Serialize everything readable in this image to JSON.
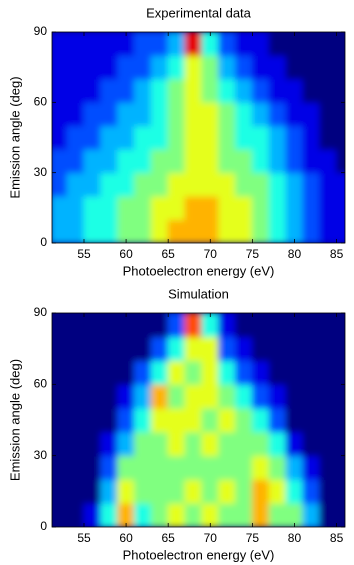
{
  "chart_data": [
    {
      "type": "heatmap",
      "title": "Experimental data",
      "xlabel": "Photoelectron energy (eV)",
      "ylabel": "Emission angle (deg)",
      "colormap": "jet",
      "zlim": [
        0,
        10
      ],
      "x": [
        52,
        54,
        56,
        58,
        60,
        62,
        64,
        66,
        68,
        70,
        72,
        74,
        76,
        78,
        80,
        82,
        84,
        86
      ],
      "y": [
        5,
        15,
        25,
        35,
        45,
        55,
        65,
        75,
        85
      ],
      "z": [
        [
          3,
          3,
          4,
          4,
          5,
          5,
          6,
          7,
          7,
          7,
          6,
          6,
          5,
          4,
          3,
          2,
          1,
          1
        ],
        [
          3,
          3,
          4,
          4,
          5,
          5,
          6,
          6,
          7,
          7,
          6,
          6,
          5,
          4,
          3,
          2,
          1,
          1
        ],
        [
          2,
          3,
          3,
          4,
          4,
          5,
          5,
          6,
          6,
          6,
          6,
          5,
          5,
          4,
          3,
          2,
          1,
          1
        ],
        [
          2,
          2,
          3,
          3,
          4,
          4,
          5,
          5,
          6,
          6,
          5,
          5,
          4,
          3,
          2,
          1,
          1,
          0
        ],
        [
          1,
          2,
          2,
          3,
          3,
          4,
          4,
          5,
          6,
          6,
          5,
          4,
          4,
          3,
          2,
          1,
          0,
          0
        ],
        [
          1,
          1,
          2,
          2,
          3,
          3,
          4,
          5,
          6,
          6,
          5,
          4,
          3,
          2,
          1,
          1,
          0,
          0
        ],
        [
          1,
          1,
          1,
          2,
          2,
          3,
          4,
          5,
          6,
          5,
          4,
          3,
          2,
          1,
          1,
          0,
          0,
          0
        ],
        [
          1,
          1,
          1,
          1,
          2,
          2,
          3,
          4,
          6,
          5,
          3,
          2,
          1,
          1,
          0,
          0,
          0,
          0
        ],
        [
          1,
          1,
          1,
          1,
          1,
          2,
          2,
          3,
          9,
          4,
          2,
          1,
          1,
          0,
          0,
          0,
          0,
          0
        ]
      ],
      "xlim": [
        51.2,
        86
      ],
      "ylim": [
        0,
        90
      ],
      "xticks": [
        55,
        60,
        65,
        70,
        75,
        80,
        85
      ],
      "yticks": [
        0,
        30,
        60,
        90
      ]
    },
    {
      "type": "heatmap",
      "title": "Simulation",
      "xlabel": "Photoelectron energy (eV)",
      "ylabel": "Emission angle (deg)",
      "colormap": "jet",
      "zlim": [
        0,
        10
      ],
      "x": [
        52,
        54,
        56,
        58,
        60,
        62,
        64,
        66,
        68,
        70,
        72,
        74,
        76,
        78,
        80,
        82,
        84,
        86
      ],
      "y": [
        5,
        15,
        25,
        35,
        45,
        55,
        65,
        75,
        85
      ],
      "z": [
        [
          0,
          0,
          1,
          4,
          7,
          4,
          5,
          6,
          5,
          6,
          5,
          5,
          7,
          5,
          5,
          3,
          0,
          0
        ],
        [
          0,
          0,
          0,
          3,
          6,
          5,
          5,
          5,
          6,
          5,
          6,
          5,
          7,
          6,
          4,
          2,
          0,
          0
        ],
        [
          0,
          0,
          0,
          2,
          5,
          5,
          5,
          5,
          5,
          5,
          5,
          5,
          6,
          5,
          3,
          1,
          0,
          0
        ],
        [
          0,
          0,
          0,
          1,
          3,
          5,
          5,
          6,
          5,
          6,
          5,
          5,
          5,
          4,
          1,
          0,
          0,
          0
        ],
        [
          0,
          0,
          0,
          0,
          2,
          4,
          6,
          6,
          6,
          5,
          6,
          5,
          4,
          2,
          0,
          0,
          0,
          0
        ],
        [
          0,
          0,
          0,
          0,
          1,
          3,
          7,
          5,
          6,
          6,
          5,
          4,
          2,
          1,
          0,
          0,
          0,
          0
        ],
        [
          0,
          0,
          0,
          0,
          0,
          2,
          4,
          6,
          5,
          6,
          4,
          2,
          1,
          0,
          0,
          0,
          0,
          0
        ],
        [
          0,
          0,
          0,
          0,
          0,
          0,
          2,
          4,
          6,
          6,
          2,
          1,
          0,
          0,
          0,
          0,
          0,
          0
        ],
        [
          0,
          0,
          0,
          0,
          0,
          0,
          0,
          2,
          8,
          4,
          1,
          0,
          0,
          0,
          0,
          0,
          0,
          0
        ]
      ],
      "xlim": [
        51.2,
        86
      ],
      "ylim": [
        0,
        90
      ],
      "xticks": [
        55,
        60,
        65,
        70,
        75,
        80,
        85
      ],
      "yticks": [
        0,
        30,
        60,
        90
      ]
    }
  ]
}
